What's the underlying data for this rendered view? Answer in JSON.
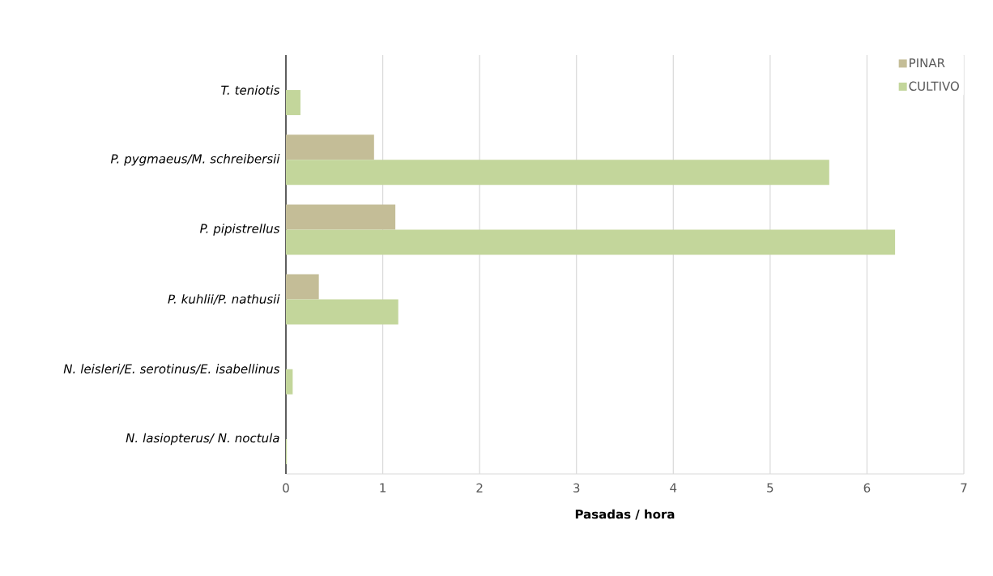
{
  "chart_data": {
    "type": "bar",
    "orientation": "horizontal",
    "xlabel": "Pasadas / hora",
    "categories": [
      "T. teniotis",
      "P. pygmaeus/M. schreibersii",
      "P. pipistrellus",
      "P. kuhlii/P. nathusii",
      "N. leisleri/E. serotinus/E. isabellinus",
      "N. lasiopterus/ N. noctula"
    ],
    "series": [
      {
        "name": "PINAR",
        "color": "#c4bd97",
        "values": [
          0,
          0.91,
          1.13,
          0.34,
          0,
          0
        ]
      },
      {
        "name": "CULTIVO",
        "color": "#c3d69b",
        "values": [
          0.15,
          5.61,
          6.29,
          1.16,
          0.07,
          0.01
        ]
      }
    ],
    "xlim": [
      0,
      7
    ],
    "xticks": [
      0,
      1,
      2,
      3,
      4,
      5,
      6,
      7
    ],
    "grid": "x",
    "legend": "top right"
  }
}
